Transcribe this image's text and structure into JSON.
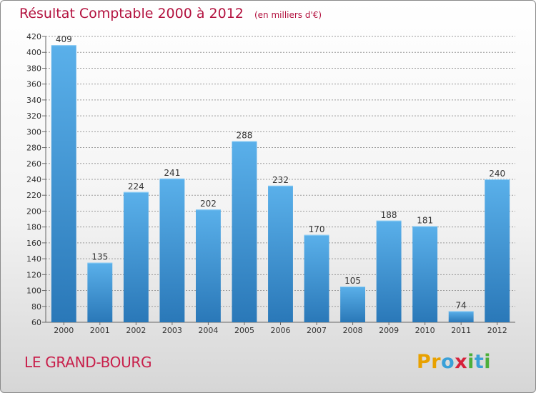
{
  "chart_data": {
    "type": "bar",
    "title": "Résultat Comptable 2000 à 2012",
    "subtitle": "(en milliers d'€)",
    "categories": [
      "2000",
      "2001",
      "2002",
      "2003",
      "2004",
      "2005",
      "2006",
      "2007",
      "2008",
      "2009",
      "2010",
      "2011",
      "2012"
    ],
    "values": [
      409,
      135,
      224,
      241,
      202,
      288,
      232,
      170,
      105,
      188,
      181,
      74,
      240
    ],
    "ylim": [
      60,
      420
    ],
    "yticks": [
      60,
      80,
      100,
      120,
      140,
      160,
      180,
      200,
      220,
      240,
      260,
      280,
      300,
      320,
      340,
      360,
      380,
      400,
      420
    ],
    "grid": true,
    "bar_color_top": "#5ab0ea",
    "bar_color_bottom": "#2a78b8"
  },
  "footer": {
    "place_name": "LE GRAND-BOURG",
    "brand_letters": [
      {
        "ch": "P",
        "color": "#e8a100"
      },
      {
        "ch": "r",
        "color": "#e8a100"
      },
      {
        "ch": "o",
        "color": "#3aa0d8"
      },
      {
        "ch": "x",
        "color": "#d6213a"
      },
      {
        "ch": "i",
        "color": "#4caf3a"
      },
      {
        "ch": "t",
        "color": "#3aa0d8"
      },
      {
        "ch": "i",
        "color": "#4caf3a"
      }
    ]
  },
  "colors": {
    "title": "#b3123f",
    "place": "#c81e4a"
  }
}
